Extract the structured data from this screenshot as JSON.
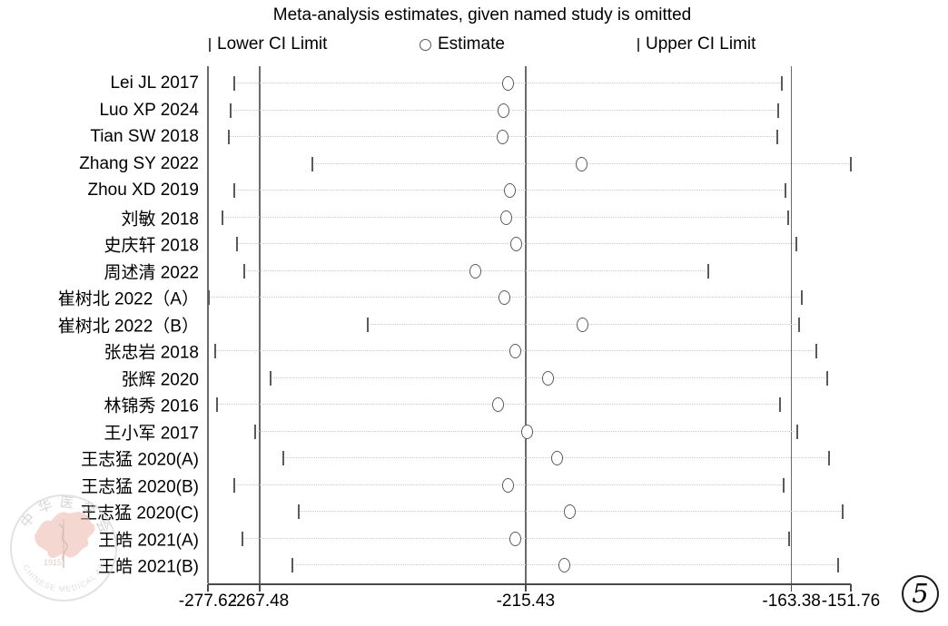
{
  "figure": {
    "title": "Meta-analysis estimates, given named study is omitted",
    "figure_number": "5"
  },
  "legend": {
    "lower_label": "Lower CI Limit",
    "estimate_label": "Estimate",
    "upper_label": "Upper CI Limit"
  },
  "watermark": {
    "cjk_text": "中华医学会",
    "year": "1915",
    "ring_text": "CHINESE MEDICAL ASSOCIATION"
  },
  "colors": {
    "marker_stroke": "#5a5a5a",
    "dotted_line": "#c9c9c9",
    "reference_line": "#6a6a6a",
    "axis": "#4a4a4a",
    "text": "#000000",
    "watermark_red": "#edb7ae",
    "watermark_gray": "#c2c2c2"
  },
  "chart_data": {
    "type": "scatter",
    "subtype": "leave-one-out sensitivity forest plot",
    "title": "Meta-analysis estimates, given named study is omitted",
    "xlabel": "",
    "ylabel": "",
    "xlim": [
      -277.62,
      -151.76
    ],
    "grid": false,
    "legend_position": "top",
    "legend": [
      "Lower CI Limit",
      "Estimate",
      "Upper CI Limit"
    ],
    "xticks": [
      "-277.62",
      "-267.48",
      "-215.43",
      "-163.38",
      "-151.76"
    ],
    "xtick_values": [
      -277.62,
      -267.48,
      -215.43,
      -163.38,
      -151.76
    ],
    "reference_lines": [
      -277.62,
      -267.48,
      -215.43,
      -163.38
    ],
    "studies": [
      {
        "label": "Lei JL 2017",
        "lower": -272.4,
        "estimate": -218.9,
        "upper": -165.2
      },
      {
        "label": "Luo XP 2024",
        "lower": -273.2,
        "estimate": -219.7,
        "upper": -166.0
      },
      {
        "label": "Tian SW 2018",
        "lower": -273.5,
        "estimate": -219.9,
        "upper": -166.2
      },
      {
        "label": "Zhang SY 2022",
        "lower": -257.2,
        "estimate": -204.5,
        "upper": -151.8
      },
      {
        "label": "Zhou XD 2019",
        "lower": -272.5,
        "estimate": -218.6,
        "upper": -164.6
      },
      {
        "label": "刘敏 2018",
        "lower": -274.8,
        "estimate": -219.3,
        "upper": -164.0
      },
      {
        "label": "史庆轩 2018",
        "lower": -271.9,
        "estimate": -217.2,
        "upper": -162.5
      },
      {
        "label": "周述清 2022",
        "lower": -270.5,
        "estimate": -225.2,
        "upper": -179.7
      },
      {
        "label": "崔树北 2022（A）",
        "lower": -277.5,
        "estimate": -219.5,
        "upper": -161.4
      },
      {
        "label": "崔树北 2022（B）",
        "lower": -246.4,
        "estimate": -204.3,
        "upper": -161.9
      },
      {
        "label": "张忠岩 2018",
        "lower": -276.2,
        "estimate": -217.4,
        "upper": -158.5
      },
      {
        "label": "张辉 2020",
        "lower": -265.4,
        "estimate": -211.1,
        "upper": -156.4
      },
      {
        "label": "林锦秀 2016",
        "lower": -275.8,
        "estimate": -220.9,
        "upper": -165.6
      },
      {
        "label": "王小军 2017",
        "lower": -268.3,
        "estimate": -215.2,
        "upper": -162.2
      },
      {
        "label": "王志猛 2020(A)",
        "lower": -262.8,
        "estimate": -209.3,
        "upper": -156.0
      },
      {
        "label": "王志猛 2020(B)",
        "lower": -272.5,
        "estimate": -218.9,
        "upper": -165.0
      },
      {
        "label": "王志猛 2020(C)",
        "lower": -259.8,
        "estimate": -206.7,
        "upper": -153.4
      },
      {
        "label": "王皓 2021(A)",
        "lower": -270.9,
        "estimate": -217.4,
        "upper": -163.9
      },
      {
        "label": "王皓 2021(B)",
        "lower": -261.1,
        "estimate": -207.9,
        "upper": -154.3
      }
    ]
  }
}
